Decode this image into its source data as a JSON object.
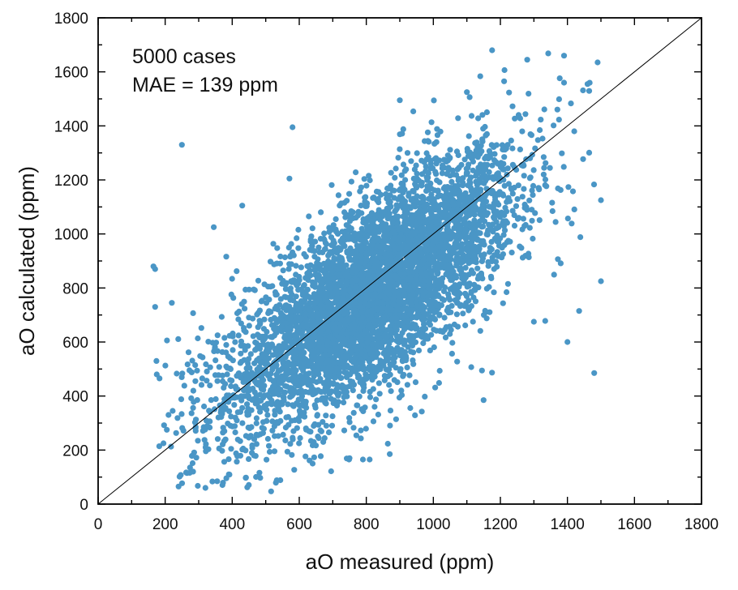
{
  "chart_data": {
    "type": "scatter",
    "title": "",
    "xlabel": "aO measured (ppm)",
    "ylabel": "aO calculated (ppm)",
    "xlim": [
      0,
      1800
    ],
    "ylim": [
      0,
      1800
    ],
    "xticks": [
      0,
      200,
      400,
      600,
      800,
      1000,
      1200,
      1400,
      1600,
      1800
    ],
    "yticks": [
      0,
      200,
      400,
      600,
      800,
      1000,
      1200,
      1400,
      1600,
      1800
    ],
    "xtick_labels": [
      "0",
      "200",
      "400",
      "600",
      "800",
      "1000",
      "1200",
      "1400",
      "1600",
      "1800"
    ],
    "ytick_labels": [
      "0",
      "200",
      "400",
      "600",
      "800",
      "1000",
      "1200",
      "1400",
      "1600",
      "1800"
    ],
    "minor_tick_step": 100,
    "grid": false,
    "reference_line": {
      "type": "identity",
      "from": [
        0,
        0
      ],
      "to": [
        1800,
        1800
      ],
      "color": "#000000"
    },
    "annotations": [
      "5000 cases",
      "MAE = 139 ppm"
    ],
    "series": [
      {
        "name": "cases",
        "color": "#4a96c6",
        "n_cases": 5000,
        "x_range": [
          165,
          1500
        ],
        "mae": 139,
        "notable_points": [
          {
            "x": 165,
            "y": 880
          },
          {
            "x": 170,
            "y": 870
          },
          {
            "x": 170,
            "y": 730
          },
          {
            "x": 175,
            "y": 480
          },
          {
            "x": 195,
            "y": 225
          },
          {
            "x": 205,
            "y": 275
          },
          {
            "x": 210,
            "y": 330
          },
          {
            "x": 220,
            "y": 745
          },
          {
            "x": 240,
            "y": 65
          },
          {
            "x": 250,
            "y": 1330
          },
          {
            "x": 265,
            "y": 115
          },
          {
            "x": 290,
            "y": 455
          },
          {
            "x": 345,
            "y": 1025
          },
          {
            "x": 390,
            "y": 110
          },
          {
            "x": 430,
            "y": 1105
          },
          {
            "x": 580,
            "y": 1395
          },
          {
            "x": 640,
            "y": 150
          },
          {
            "x": 750,
            "y": 170
          },
          {
            "x": 790,
            "y": 165
          },
          {
            "x": 810,
            "y": 165
          },
          {
            "x": 870,
            "y": 185
          },
          {
            "x": 900,
            "y": 1495
          },
          {
            "x": 1100,
            "y": 1525
          },
          {
            "x": 1150,
            "y": 385
          },
          {
            "x": 1280,
            "y": 1645
          },
          {
            "x": 1300,
            "y": 675
          },
          {
            "x": 1390,
            "y": 1660
          },
          {
            "x": 1390,
            "y": 1560
          },
          {
            "x": 1400,
            "y": 600
          },
          {
            "x": 1435,
            "y": 715
          },
          {
            "x": 1460,
            "y": 1555
          },
          {
            "x": 1480,
            "y": 485
          },
          {
            "x": 1490,
            "y": 1635
          },
          {
            "x": 1500,
            "y": 825
          },
          {
            "x": 1500,
            "y": 1125
          }
        ]
      }
    ]
  }
}
